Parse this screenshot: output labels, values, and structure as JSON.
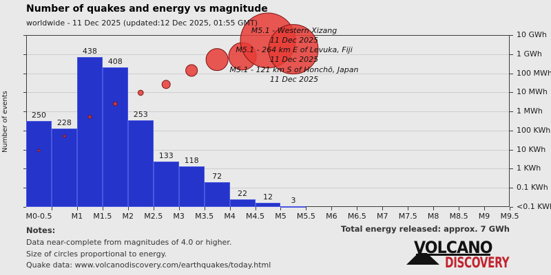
{
  "header": {
    "title": "Number of quakes and energy vs magnitude",
    "subtitle": "worldwide - 11 Dec 2025 (updated:12 Dec 2025, 01:55 GMT)"
  },
  "chart_data": {
    "type": "bar",
    "title": "Number of quakes and energy vs magnitude",
    "subtitle": "worldwide - 11 Dec 2025 (updated:12 Dec 2025, 01:55 GMT)",
    "ylabel": "Number of events",
    "categories": [
      "M0-0.5",
      "M1",
      "M1.5",
      "M2",
      "M2.5",
      "M3",
      "M3.5",
      "M4",
      "M4.5",
      "M5",
      "M5.5",
      "M6",
      "M6.5",
      "M7",
      "M7.5",
      "M8",
      "M8.5",
      "M9",
      "M9.5"
    ],
    "bins": [
      "M0-0.5",
      "M0.5-1",
      "M1-1.5",
      "M1.5-2",
      "M2-2.5",
      "M2.5-3",
      "M3-3.5",
      "M3.5-4",
      "M4-4.5",
      "M4.5-5",
      "M5-5.5"
    ],
    "values": [
      250,
      228,
      438,
      408,
      253,
      133,
      118,
      72,
      22,
      12,
      3
    ],
    "ylim": [
      0,
      502
    ],
    "grid": true,
    "right_axis_ticks": [
      "10 GWh",
      "1 GWh",
      "100 MWh",
      "10 MWh",
      "1 MWh",
      "100 KWh",
      "10 KWh",
      "1 KWh",
      "0.1 KWh",
      "<0.1 KWh"
    ],
    "energy_bubbles": [
      {
        "bin": "M0-0.5",
        "energy_kwh": 9,
        "radius_px": 1.6
      },
      {
        "bin": "M0.5-1",
        "energy_kwh": 51,
        "radius_px": 1.8
      },
      {
        "bin": "M1-1.5",
        "energy_kwh": 520,
        "radius_px": 2.3
      },
      {
        "bin": "M1.5-2",
        "energy_kwh": 2500,
        "radius_px": 2.8
      },
      {
        "bin": "M2-2.5",
        "energy_kwh": 9500,
        "radius_px": 3.8
      },
      {
        "bin": "M2.5-3",
        "energy_kwh": 26000,
        "radius_px": 6
      },
      {
        "bin": "M3-3.5",
        "energy_kwh": 140000,
        "radius_px": 8.5
      },
      {
        "bin": "M3.5-4",
        "energy_kwh": 520000,
        "radius_px": 16
      },
      {
        "bin": "M4-4.5",
        "energy_kwh": 770000,
        "radius_px": 20
      },
      {
        "bin": "M4.5-5",
        "energy_kwh": 5200000,
        "radius_px": 40
      },
      {
        "bin": "M5-5.5",
        "energy_kwh": 1800000,
        "radius_px": 36
      }
    ],
    "annotations": [
      {
        "label": "M5.1 - Western Xizang",
        "date": "11 Dec 2025"
      },
      {
        "label": "M5.1 - 264 km E of Levuka, Fiji",
        "date": "11 Dec 2025"
      },
      {
        "label": "M5.1 - 121 km S of Honchō, Japan",
        "date": "11 Dec 2025"
      }
    ],
    "colors": {
      "bar": "#2534ca",
      "bar_edge": "#4a57e2",
      "bubble": "#e63c36",
      "bubble_edge": "#7a1513",
      "grid": "#cdcdcd",
      "frame": "#3c3c3c",
      "background": "#e9e9e9"
    }
  },
  "notes": {
    "title": "Notes:",
    "lines": [
      "Data near-complete from magnitudes of 4.0 or higher.",
      "Size of circles proportional to energy.",
      "Quake data: www.volcanodiscovery.com/earthquakes/today.html"
    ]
  },
  "footer": {
    "total_energy": "Total energy released: approx. 7 GWh"
  },
  "logo": {
    "line1": "VOLCANO",
    "line2": "DISCOVERY",
    "accent": "#c1232f"
  }
}
